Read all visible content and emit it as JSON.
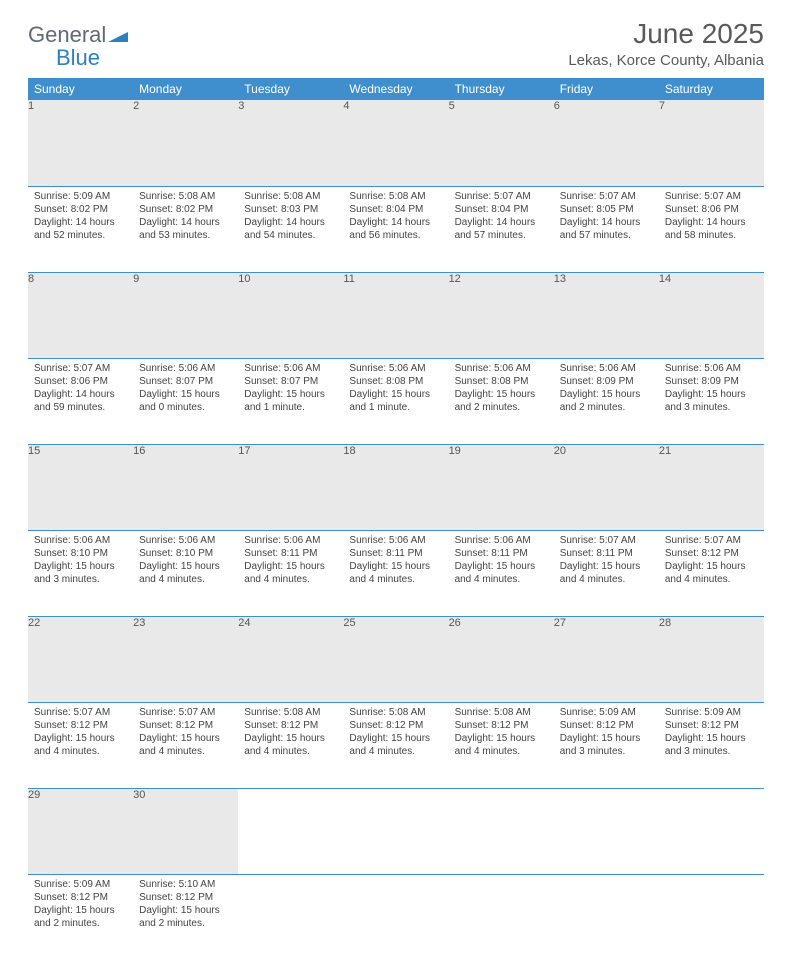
{
  "brand": {
    "general": "General",
    "blue": "Blue"
  },
  "title": "June 2025",
  "location": "Lekas, Korce County, Albania",
  "colors": {
    "header_bg": "#3f8fcf",
    "header_text": "#ffffff",
    "daynum_bg": "#e9e9e9",
    "border": "#3f8fcf",
    "text": "#444444",
    "title_text": "#5a5a5a",
    "logo_gray": "#5f6a72",
    "logo_blue": "#2f7fc1"
  },
  "weekdays": [
    "Sunday",
    "Monday",
    "Tuesday",
    "Wednesday",
    "Thursday",
    "Friday",
    "Saturday"
  ],
  "weeks": [
    [
      {
        "n": 1,
        "sr": "5:09 AM",
        "ss": "8:02 PM",
        "dl": "14 hours and 52 minutes."
      },
      {
        "n": 2,
        "sr": "5:08 AM",
        "ss": "8:02 PM",
        "dl": "14 hours and 53 minutes."
      },
      {
        "n": 3,
        "sr": "5:08 AM",
        "ss": "8:03 PM",
        "dl": "14 hours and 54 minutes."
      },
      {
        "n": 4,
        "sr": "5:08 AM",
        "ss": "8:04 PM",
        "dl": "14 hours and 56 minutes."
      },
      {
        "n": 5,
        "sr": "5:07 AM",
        "ss": "8:04 PM",
        "dl": "14 hours and 57 minutes."
      },
      {
        "n": 6,
        "sr": "5:07 AM",
        "ss": "8:05 PM",
        "dl": "14 hours and 57 minutes."
      },
      {
        "n": 7,
        "sr": "5:07 AM",
        "ss": "8:06 PM",
        "dl": "14 hours and 58 minutes."
      }
    ],
    [
      {
        "n": 8,
        "sr": "5:07 AM",
        "ss": "8:06 PM",
        "dl": "14 hours and 59 minutes."
      },
      {
        "n": 9,
        "sr": "5:06 AM",
        "ss": "8:07 PM",
        "dl": "15 hours and 0 minutes."
      },
      {
        "n": 10,
        "sr": "5:06 AM",
        "ss": "8:07 PM",
        "dl": "15 hours and 1 minute."
      },
      {
        "n": 11,
        "sr": "5:06 AM",
        "ss": "8:08 PM",
        "dl": "15 hours and 1 minute."
      },
      {
        "n": 12,
        "sr": "5:06 AM",
        "ss": "8:08 PM",
        "dl": "15 hours and 2 minutes."
      },
      {
        "n": 13,
        "sr": "5:06 AM",
        "ss": "8:09 PM",
        "dl": "15 hours and 2 minutes."
      },
      {
        "n": 14,
        "sr": "5:06 AM",
        "ss": "8:09 PM",
        "dl": "15 hours and 3 minutes."
      }
    ],
    [
      {
        "n": 15,
        "sr": "5:06 AM",
        "ss": "8:10 PM",
        "dl": "15 hours and 3 minutes."
      },
      {
        "n": 16,
        "sr": "5:06 AM",
        "ss": "8:10 PM",
        "dl": "15 hours and 4 minutes."
      },
      {
        "n": 17,
        "sr": "5:06 AM",
        "ss": "8:11 PM",
        "dl": "15 hours and 4 minutes."
      },
      {
        "n": 18,
        "sr": "5:06 AM",
        "ss": "8:11 PM",
        "dl": "15 hours and 4 minutes."
      },
      {
        "n": 19,
        "sr": "5:06 AM",
        "ss": "8:11 PM",
        "dl": "15 hours and 4 minutes."
      },
      {
        "n": 20,
        "sr": "5:07 AM",
        "ss": "8:11 PM",
        "dl": "15 hours and 4 minutes."
      },
      {
        "n": 21,
        "sr": "5:07 AM",
        "ss": "8:12 PM",
        "dl": "15 hours and 4 minutes."
      }
    ],
    [
      {
        "n": 22,
        "sr": "5:07 AM",
        "ss": "8:12 PM",
        "dl": "15 hours and 4 minutes."
      },
      {
        "n": 23,
        "sr": "5:07 AM",
        "ss": "8:12 PM",
        "dl": "15 hours and 4 minutes."
      },
      {
        "n": 24,
        "sr": "5:08 AM",
        "ss": "8:12 PM",
        "dl": "15 hours and 4 minutes."
      },
      {
        "n": 25,
        "sr": "5:08 AM",
        "ss": "8:12 PM",
        "dl": "15 hours and 4 minutes."
      },
      {
        "n": 26,
        "sr": "5:08 AM",
        "ss": "8:12 PM",
        "dl": "15 hours and 4 minutes."
      },
      {
        "n": 27,
        "sr": "5:09 AM",
        "ss": "8:12 PM",
        "dl": "15 hours and 3 minutes."
      },
      {
        "n": 28,
        "sr": "5:09 AM",
        "ss": "8:12 PM",
        "dl": "15 hours and 3 minutes."
      }
    ],
    [
      {
        "n": 29,
        "sr": "5:09 AM",
        "ss": "8:12 PM",
        "dl": "15 hours and 2 minutes."
      },
      {
        "n": 30,
        "sr": "5:10 AM",
        "ss": "8:12 PM",
        "dl": "15 hours and 2 minutes."
      },
      null,
      null,
      null,
      null,
      null
    ]
  ],
  "labels": {
    "sunrise": "Sunrise:",
    "sunset": "Sunset:",
    "daylight": "Daylight:"
  }
}
